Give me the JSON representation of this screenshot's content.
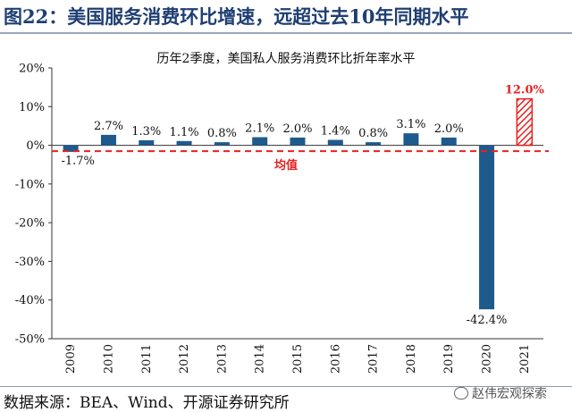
{
  "figure_title": "图22：美国服务消费环比增速，远超过去10年同期水平",
  "source": "数据来源：BEA、Wind、开源证券研究所",
  "watermark": "赵伟宏观探索",
  "colors": {
    "bar": "#1f5a8c",
    "highlight": "#e8211f",
    "mean_line": "#e8211f",
    "title_blue": "#1f3f73"
  },
  "chart_data": {
    "type": "bar",
    "title": "历年2季度，美国私人服务消费环比折年率水平",
    "categories": [
      "2009",
      "2010",
      "2011",
      "2012",
      "2013",
      "2014",
      "2015",
      "2016",
      "2017",
      "2018",
      "2019",
      "2020",
      "2021"
    ],
    "values": [
      -1.7,
      2.7,
      1.3,
      1.1,
      0.8,
      2.1,
      2.0,
      1.4,
      0.8,
      3.1,
      2.0,
      -42.4,
      12.0
    ],
    "value_labels": [
      "-1.7%",
      "2.7%",
      "1.3%",
      "1.1%",
      "0.8%",
      "2.1%",
      "2.0%",
      "1.4%",
      "0.8%",
      "3.1%",
      "2.0%",
      "-42.4%",
      "12.0%"
    ],
    "highlight_index": 12,
    "ylim": [
      -50,
      20
    ],
    "yticks": [
      20,
      10,
      0,
      -10,
      -20,
      -30,
      -40,
      -50
    ],
    "ytick_labels": [
      "20%",
      "10%",
      "0%",
      "-10%",
      "-20%",
      "-30%",
      "-40%",
      "-50%"
    ],
    "mean_line": {
      "label": "均值",
      "value_start": -1.5,
      "value_end": -1.5
    },
    "xlabel": "",
    "ylabel": "",
    "grid": false,
    "legend": "none"
  }
}
